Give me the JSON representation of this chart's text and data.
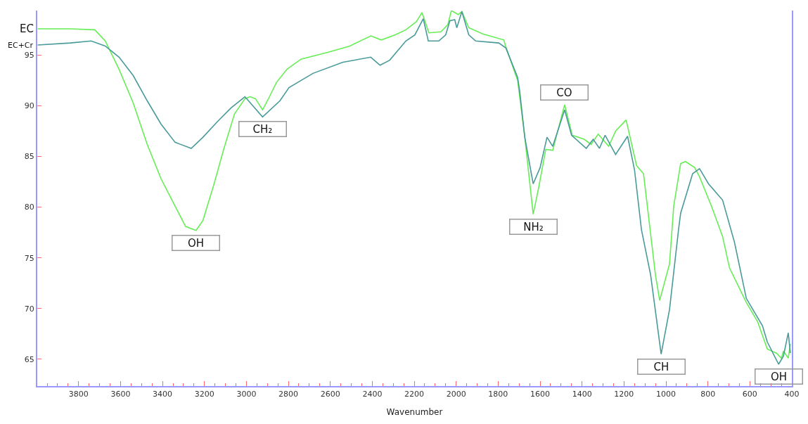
{
  "chart_data": {
    "type": "line",
    "xlabel": "Wavenumber",
    "xlim": [
      3997,
      400
    ],
    "ylim": [
      62.35,
      99.4
    ],
    "xticks": [
      3800,
      3600,
      3400,
      3200,
      3000,
      2800,
      2600,
      2400,
      2200,
      2000,
      1800,
      1600,
      1400,
      1200,
      1000,
      800,
      600,
      400
    ],
    "yticks": [
      65,
      70,
      75,
      80,
      85,
      90,
      95
    ],
    "legend": false,
    "marker": "none",
    "line_style": "solid",
    "series": [
      {
        "name": "EC",
        "color": "#66ee55",
        "x": [
          3995,
          3840,
          3723,
          3673,
          3607,
          3540,
          3473,
          3407,
          3340,
          3290,
          3240,
          3207,
          3157,
          3107,
          3057,
          3007,
          2983,
          2957,
          2923,
          2890,
          2857,
          2807,
          2740,
          2607,
          2507,
          2407,
          2357,
          2290,
          2240,
          2190,
          2163,
          2130,
          2073,
          2040,
          2023,
          1990,
          1973,
          1940,
          1873,
          1773,
          1763,
          1707,
          1673,
          1633,
          1607,
          1573,
          1540,
          1483,
          1447,
          1390,
          1357,
          1323,
          1273,
          1240,
          1190,
          1140,
          1107,
          1050,
          1030,
          983,
          963,
          930,
          907,
          863,
          840,
          783,
          730,
          697,
          617,
          563,
          517,
          473,
          450,
          440,
          417,
          407
        ],
        "values": [
          97.6,
          97.6,
          97.5,
          96.4,
          93.6,
          90.3,
          86.2,
          82.8,
          80.1,
          78.1,
          77.7,
          78.7,
          82.1,
          85.8,
          89.2,
          90.7,
          90.9,
          90.7,
          89.6,
          90.9,
          92.3,
          93.6,
          94.6,
          95.3,
          95.9,
          96.9,
          96.5,
          97.0,
          97.5,
          98.3,
          99.2,
          97.2,
          97.3,
          98.0,
          99.4,
          99.0,
          99.3,
          97.7,
          97.1,
          96.5,
          95.8,
          92.5,
          86.9,
          79.3,
          81.9,
          85.7,
          85.6,
          90.1,
          87.1,
          86.7,
          86.2,
          87.2,
          86.0,
          87.5,
          88.6,
          84.1,
          83.3,
          73.3,
          70.8,
          74.4,
          80.1,
          84.3,
          84.5,
          83.9,
          83.0,
          80.1,
          77.1,
          74.0,
          70.6,
          68.7,
          66.0,
          65.6,
          65.1,
          65.8,
          65.1,
          66.5
        ]
      },
      {
        "name": "EC+Cr",
        "color": "#4a9a9a",
        "x": [
          3995,
          3840,
          3740,
          3673,
          3607,
          3540,
          3473,
          3407,
          3340,
          3263,
          3207,
          3140,
          3073,
          3007,
          2923,
          2840,
          2797,
          2683,
          2540,
          2407,
          2363,
          2317,
          2240,
          2197,
          2157,
          2133,
          2083,
          2050,
          2030,
          2007,
          1997,
          1973,
          1940,
          1907,
          1797,
          1763,
          1707,
          1697,
          1673,
          1633,
          1600,
          1567,
          1540,
          1483,
          1450,
          1380,
          1347,
          1317,
          1290,
          1240,
          1183,
          1150,
          1117,
          1073,
          1023,
          983,
          940,
          930,
          873,
          840,
          797,
          730,
          673,
          617,
          540,
          517,
          463,
          440,
          417,
          407
        ],
        "values": [
          96.0,
          96.2,
          96.4,
          95.9,
          94.8,
          93.0,
          90.5,
          88.2,
          86.4,
          85.8,
          86.9,
          88.4,
          89.8,
          90.9,
          88.9,
          90.5,
          91.8,
          93.2,
          94.3,
          94.8,
          94.0,
          94.5,
          96.4,
          97.0,
          98.6,
          96.4,
          96.4,
          97.0,
          98.4,
          98.5,
          97.7,
          99.3,
          97.0,
          96.4,
          96.2,
          95.7,
          92.8,
          91.4,
          86.9,
          82.3,
          83.9,
          86.9,
          86.0,
          89.6,
          87.1,
          85.8,
          86.7,
          85.8,
          87.1,
          85.2,
          87.0,
          83.7,
          77.8,
          73.3,
          65.5,
          69.9,
          77.8,
          79.4,
          83.3,
          83.8,
          82.3,
          80.7,
          76.5,
          71.0,
          68.3,
          66.7,
          64.5,
          65.3,
          67.6,
          65.6
        ]
      }
    ],
    "annotations": [
      {
        "text": "OH",
        "x": 3240,
        "y": 77.7
      },
      {
        "text": "CH₂",
        "x": 2923,
        "y": 88.9
      },
      {
        "text": "CO",
        "x": 1483,
        "y": 90.1
      },
      {
        "text": "NH₂",
        "x": 1633,
        "y": 79.3
      },
      {
        "text": "CH",
        "x": 1023,
        "y": 65.5
      },
      {
        "text": "OH",
        "x": 463,
        "y": 64.5
      }
    ]
  }
}
